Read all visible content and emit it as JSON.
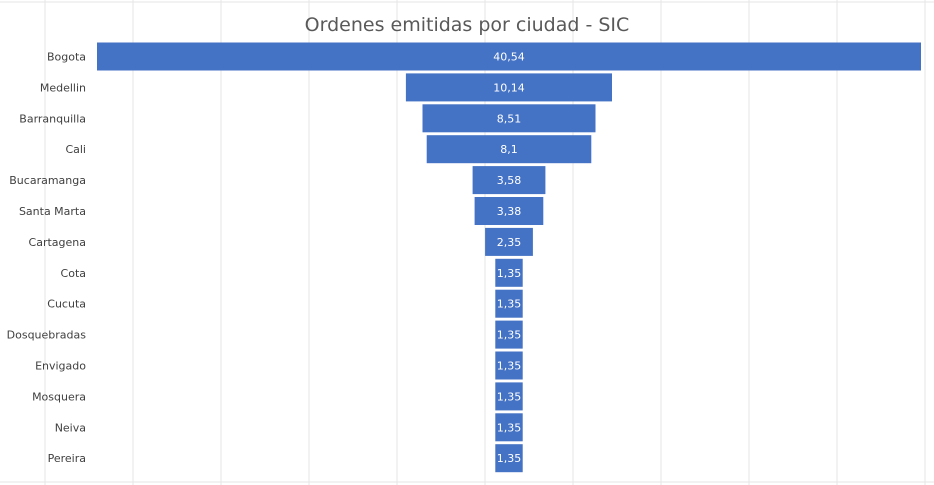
{
  "chart_data": {
    "type": "bar",
    "subtype": "funnel",
    "title": "Ordenes emitidas por ciudad - SIC",
    "categories": [
      "Bogota",
      "Medellin",
      "Barranquilla",
      "Cali",
      "Bucaramanga",
      "Santa Marta",
      "Cartagena",
      "Cota",
      "Cucuta",
      "Dosquebradas",
      "Envigado",
      "Mosquera",
      "Neiva",
      "Pereira"
    ],
    "values": [
      40.54,
      10.14,
      8.51,
      8.1,
      3.58,
      3.38,
      2.35,
      1.35,
      1.35,
      1.35,
      1.35,
      1.35,
      1.35,
      1.35
    ],
    "data_labels": [
      "40,54",
      "10,14",
      "8,51",
      "8,1",
      "3,58",
      "3,38",
      "2,35",
      "1,35",
      "1,35",
      "1,35",
      "1,35",
      "1,35",
      "1,35",
      "1,35"
    ],
    "bar_color": "#4472c4",
    "grid": true,
    "legend": "none"
  }
}
